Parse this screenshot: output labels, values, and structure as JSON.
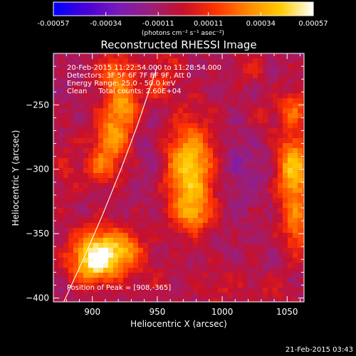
{
  "chart_data": {
    "type": "heatmap",
    "title": "Reconstructed RHESSI Image",
    "xlabel": "Heliocentric X (arcsec)",
    "ylabel": "Heliocentric Y (arcsec)",
    "xlim": [
      870,
      1063
    ],
    "ylim": [
      -403,
      -210
    ],
    "x_ticks": [
      900,
      950,
      1000,
      1050
    ],
    "y_ticks": [
      -400,
      -350,
      -300,
      -250
    ],
    "colorbar": {
      "min": -0.00057,
      "max": 0.00057,
      "tick_values": [
        -0.00057,
        -0.00034,
        -0.00011,
        0.00011,
        0.00034,
        0.00057
      ],
      "tick_labels": [
        "-0.00057",
        "-0.00034",
        "-0.00011",
        "0.00011",
        "0.00034",
        "0.00057"
      ],
      "units_label": "(photons cm⁻² s⁻¹ asec⁻²)",
      "colormap": [
        "#0000ff",
        "#4800d8",
        "#7a1ab8",
        "#9a1f7a",
        "#c8102a",
        "#ff3300",
        "#ff8800",
        "#ffcc00",
        "#ffffff"
      ]
    },
    "annotations": {
      "time_range": "20-Feb-2015 11:22:54.000 to 11:28:54.000",
      "detectors": "Detectors: 3F 5F 6F 7F 8F 9F, Att 0",
      "energy": "Energy Range: 25.0 - 50.0 keV",
      "clean": "Clean     Total counts: 2.60E+04",
      "peak": "Position of Peak = [908,-365]"
    },
    "peak_position": [
      908,
      -365
    ],
    "background_level": -8e-05,
    "sources": [
      {
        "x": 908,
        "y": -365,
        "sx": 16,
        "sy": 13,
        "amp": 0.00062
      },
      {
        "x": 898,
        "y": -378,
        "sx": 11,
        "sy": 9,
        "amp": 0.00022
      },
      {
        "x": 930,
        "y": -362,
        "sx": 7,
        "sy": 9,
        "amp": 0.00014
      },
      {
        "x": 975,
        "y": -300,
        "sx": 13,
        "sy": 26,
        "amp": 0.00052
      },
      {
        "x": 978,
        "y": -335,
        "sx": 10,
        "sy": 10,
        "amp": 0.00024
      },
      {
        "x": 1055,
        "y": -300,
        "sx": 9,
        "sy": 20,
        "amp": 0.0005
      },
      {
        "x": 1058,
        "y": -345,
        "sx": 8,
        "sy": 16,
        "amp": 0.0003
      },
      {
        "x": 1055,
        "y": -252,
        "sx": 8,
        "sy": 10,
        "amp": 0.00026
      },
      {
        "x": 915,
        "y": -275,
        "sx": 10,
        "sy": 16,
        "amp": 0.00038
      },
      {
        "x": 905,
        "y": -300,
        "sx": 9,
        "sy": 9,
        "amp": 0.00024
      },
      {
        "x": 925,
        "y": -250,
        "sx": 9,
        "sy": 12,
        "amp": 0.00032
      },
      {
        "x": 918,
        "y": -225,
        "sx": 10,
        "sy": 10,
        "amp": 0.0003
      },
      {
        "x": 952,
        "y": -235,
        "sx": 7,
        "sy": 9,
        "amp": 0.00018
      },
      {
        "x": 880,
        "y": -300,
        "sx": 7,
        "sy": 18,
        "amp": 0.0001
      },
      {
        "x": 1022,
        "y": -222,
        "sx": 8,
        "sy": 7,
        "amp": 0.00014
      },
      {
        "x": 1030,
        "y": -260,
        "sx": 7,
        "sy": 9,
        "amp": 9e-05
      },
      {
        "x": 950,
        "y": -385,
        "sx": 10,
        "sy": 10,
        "amp": 6e-05
      },
      {
        "x": 1000,
        "y": -390,
        "sx": 14,
        "sy": 10,
        "amp": 0.0001
      },
      {
        "x": 1040,
        "y": -395,
        "sx": 10,
        "sy": 8,
        "amp": 0.0001
      },
      {
        "x": 960,
        "y": -215,
        "sx": 9,
        "sy": 8,
        "amp": 0.00012
      },
      {
        "x": 1012,
        "y": -300,
        "sx": 9,
        "sy": 20,
        "amp": -0.0001
      },
      {
        "x": 945,
        "y": -290,
        "sx": 8,
        "sy": 22,
        "amp": -8e-05
      },
      {
        "x": 1030,
        "y": -300,
        "sx": 8,
        "sy": 10,
        "amp": -6e-05
      }
    ],
    "limb_curve": [
      [
        878,
        -403
      ],
      [
        893,
        -370
      ],
      [
        908,
        -335
      ],
      [
        922,
        -300
      ],
      [
        935,
        -265
      ],
      [
        945,
        -235
      ],
      [
        950,
        -220
      ]
    ]
  },
  "footer": {
    "date": "21-Feb-2015 03:43"
  }
}
